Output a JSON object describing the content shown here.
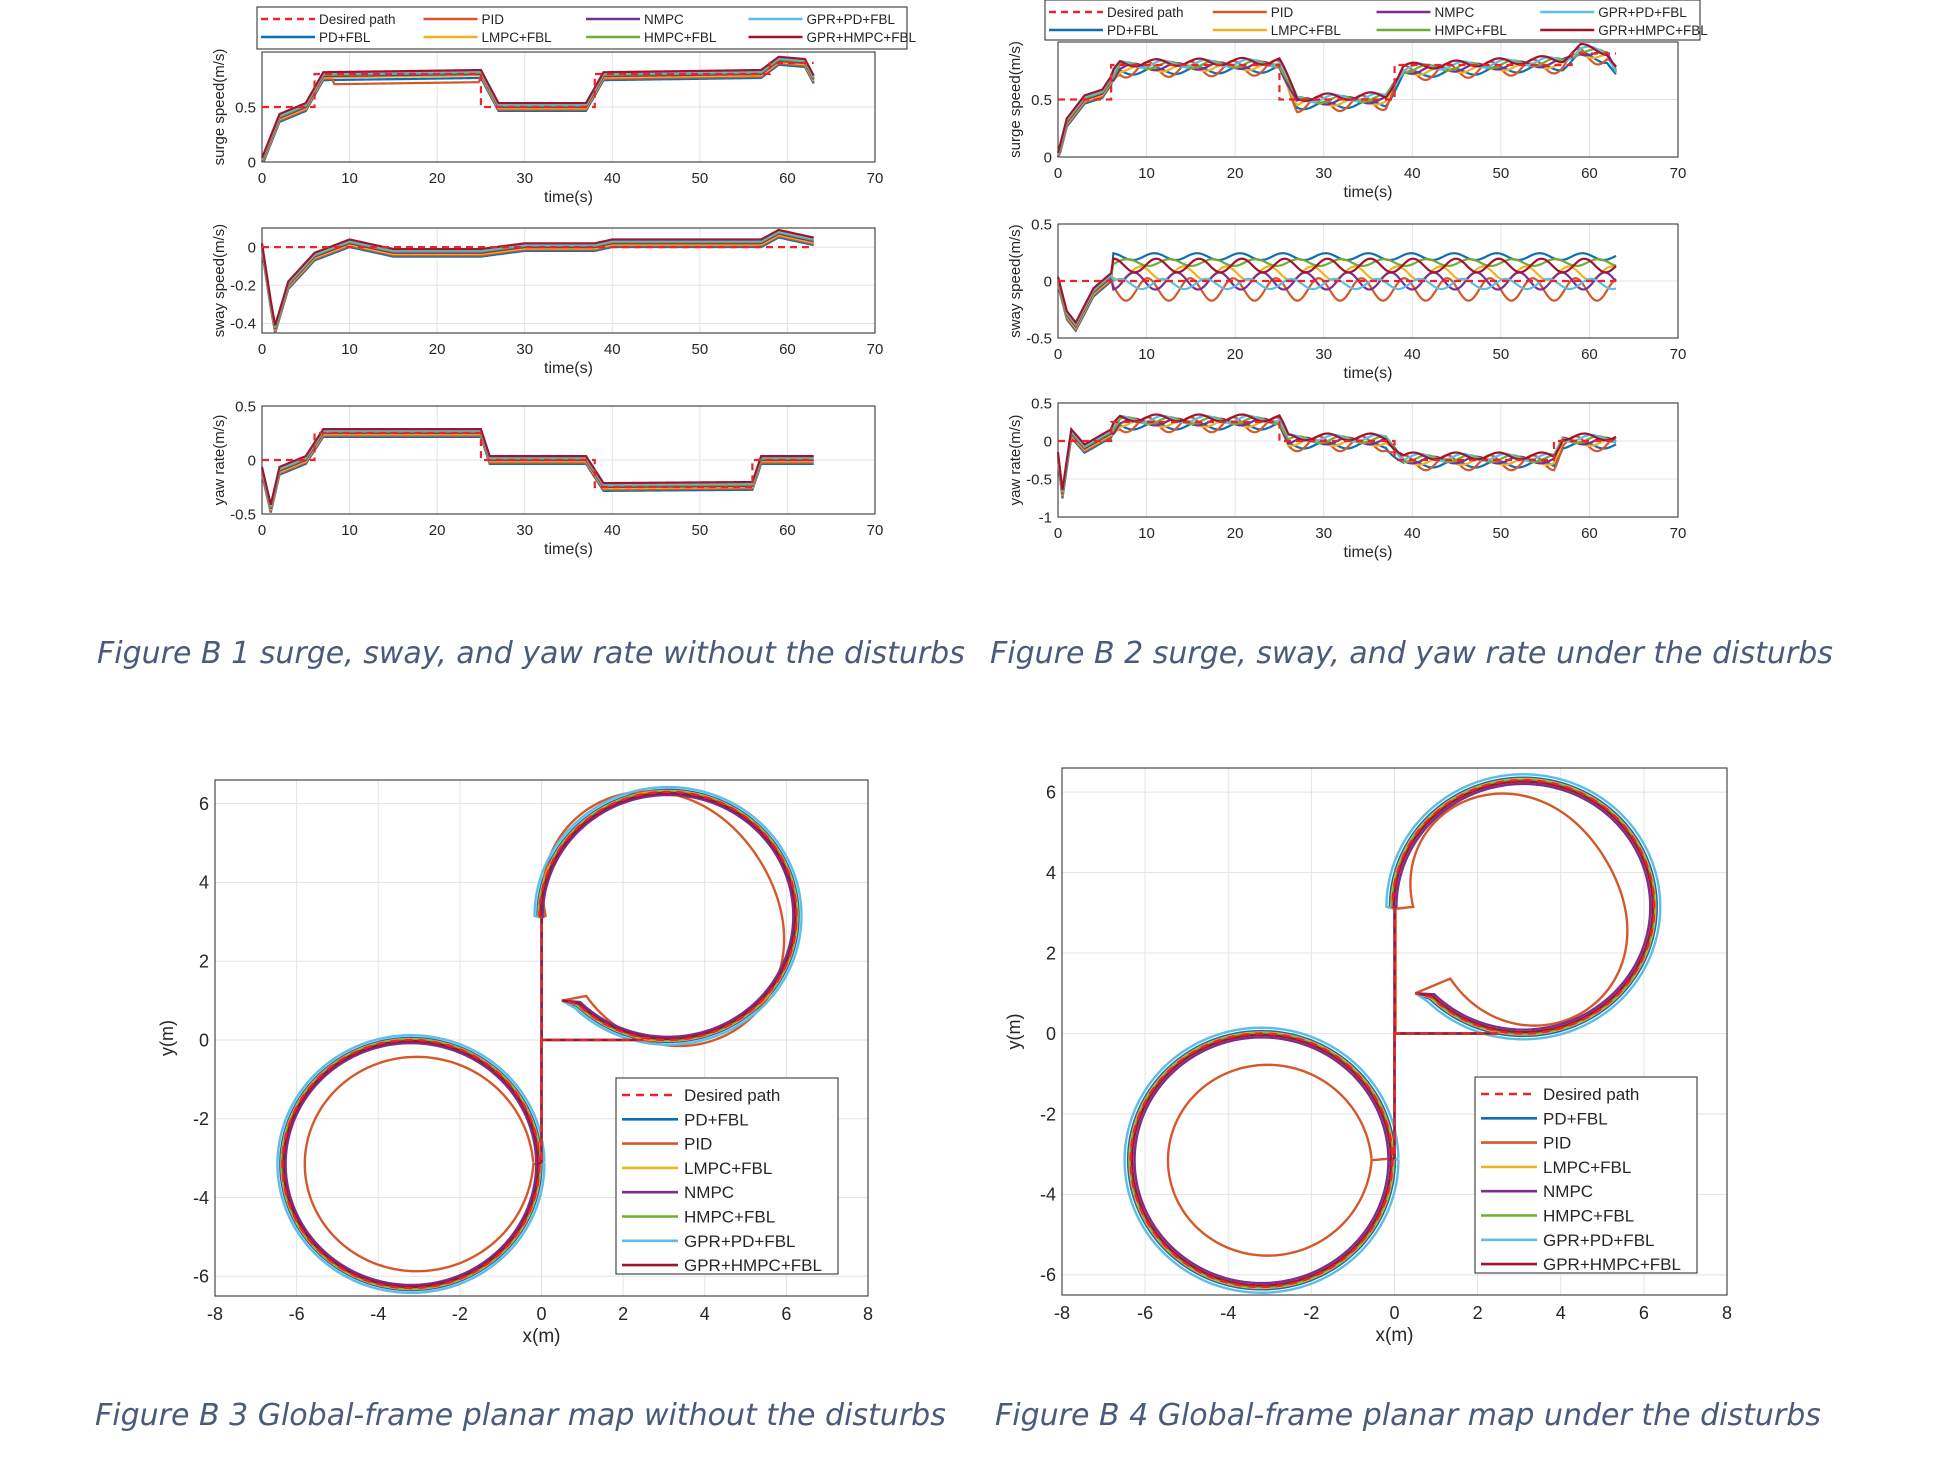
{
  "colors": {
    "Desired path": "#e8262a",
    "PD+FBL": "#0f6fb5",
    "PID": "#d4582a",
    "LMPC+FBL": "#eeb41f",
    "NMPC": "#7a2e8e",
    "HMPC+FBL": "#74aa36",
    "GPR+PD+FBL": "#5cbde6",
    "GPR+HMPC+FBL": "#a1142e"
  },
  "legend_labels": [
    "Desired path",
    "PD+FBL",
    "PID",
    "LMPC+FBL",
    "NMPC",
    "HMPC+FBL",
    "GPR+PD+FBL",
    "GPR+HMPC+FBL"
  ],
  "captions": {
    "fig1": "Figure B 1 surge, sway, and yaw rate without the disturbs",
    "fig2": "Figure B 2 surge, sway, and yaw rate under the disturbs",
    "fig3": "Figure B 3 Global-frame planar map without the disturbs",
    "fig4": "Figure B 4 Global-frame planar map under the disturbs"
  },
  "chart_data": [
    {
      "id": "fig1-surge",
      "type": "line",
      "xlabel": "time(s)",
      "ylabel": "surge speed(m/s)",
      "xlim": [
        0,
        70
      ],
      "ylim": [
        0,
        1.0
      ],
      "xticks": [
        0,
        10,
        20,
        30,
        40,
        50,
        60,
        70
      ],
      "yticks": [
        0,
        0.5
      ],
      "grid": true,
      "legend": "top-outside-2-rows",
      "desired": [
        [
          0,
          0.5
        ],
        [
          6,
          0.5
        ],
        [
          6,
          0.8
        ],
        [
          25,
          0.8
        ],
        [
          25,
          0.5
        ],
        [
          38,
          0.5
        ],
        [
          38,
          0.8
        ],
        [
          58,
          0.8
        ],
        [
          58,
          0.9
        ],
        [
          63,
          0.9
        ]
      ],
      "series_shape": [
        [
          0,
          0
        ],
        [
          1,
          0.2
        ],
        [
          2,
          0.4
        ],
        [
          5,
          0.5
        ],
        [
          7,
          0.78
        ],
        [
          25,
          0.8
        ],
        [
          27,
          0.5
        ],
        [
          37,
          0.5
        ],
        [
          39,
          0.78
        ],
        [
          57,
          0.8
        ],
        [
          59,
          0.92
        ],
        [
          62,
          0.9
        ],
        [
          63,
          0.75
        ]
      ]
    },
    {
      "id": "fig1-sway",
      "type": "line",
      "xlabel": "time(s)",
      "ylabel": "sway speed(m/s)",
      "xlim": [
        0,
        70
      ],
      "ylim": [
        -0.45,
        0.1
      ],
      "xticks": [
        0,
        10,
        20,
        30,
        40,
        50,
        60,
        70
      ],
      "yticks": [
        -0.4,
        -0.2,
        0
      ],
      "grid": true,
      "desired": [
        [
          0,
          0
        ],
        [
          63,
          0
        ]
      ],
      "series_shape": [
        [
          0,
          0
        ],
        [
          1,
          -0.3
        ],
        [
          1.5,
          -0.43
        ],
        [
          3,
          -0.2
        ],
        [
          6,
          -0.05
        ],
        [
          10,
          0.02
        ],
        [
          15,
          -0.03
        ],
        [
          25,
          -0.03
        ],
        [
          30,
          0
        ],
        [
          38,
          0
        ],
        [
          40,
          0.02
        ],
        [
          57,
          0.02
        ],
        [
          59,
          0.07
        ],
        [
          63,
          0.03
        ]
      ]
    },
    {
      "id": "fig1-yaw",
      "type": "line",
      "xlabel": "time(s)",
      "ylabel": "yaw rate(m/s)",
      "xlim": [
        0,
        70
      ],
      "ylim": [
        -0.5,
        0.5
      ],
      "xticks": [
        0,
        10,
        20,
        30,
        40,
        50,
        60,
        70
      ],
      "yticks": [
        -0.5,
        0,
        0.5
      ],
      "grid": true,
      "desired": [
        [
          0,
          0
        ],
        [
          6,
          0
        ],
        [
          6,
          0.25
        ],
        [
          25,
          0.25
        ],
        [
          25,
          0
        ],
        [
          38,
          0
        ],
        [
          38,
          -0.25
        ],
        [
          56,
          -0.25
        ],
        [
          56,
          0
        ],
        [
          63,
          0
        ]
      ],
      "series_shape": [
        [
          0,
          -0.1
        ],
        [
          1,
          -0.45
        ],
        [
          2,
          -0.1
        ],
        [
          5,
          0
        ],
        [
          7,
          0.25
        ],
        [
          25,
          0.25
        ],
        [
          26,
          0
        ],
        [
          37,
          0
        ],
        [
          39,
          -0.25
        ],
        [
          56,
          -0.24
        ],
        [
          57,
          0
        ],
        [
          63,
          0
        ]
      ]
    },
    {
      "id": "fig2-surge",
      "type": "line",
      "xlabel": "time(s)",
      "ylabel": "surge speed(m/s)",
      "xlim": [
        0,
        70
      ],
      "ylim": [
        0,
        1.0
      ],
      "xticks": [
        0,
        10,
        20,
        30,
        40,
        50,
        60,
        70
      ],
      "yticks": [
        0,
        0.5
      ],
      "grid": true,
      "legend": "top-outside-2-rows",
      "desired": [
        [
          0,
          0.5
        ],
        [
          6,
          0.5
        ],
        [
          6,
          0.8
        ],
        [
          25,
          0.8
        ],
        [
          25,
          0.5
        ],
        [
          38,
          0.5
        ],
        [
          38,
          0.8
        ],
        [
          58,
          0.8
        ],
        [
          58,
          0.9
        ],
        [
          63,
          0.9
        ]
      ],
      "series_shape": [
        [
          0,
          0
        ],
        [
          1,
          0.3
        ],
        [
          3,
          0.5
        ],
        [
          5,
          0.55
        ],
        [
          7,
          0.78
        ],
        [
          25,
          0.8
        ],
        [
          27,
          0.48
        ],
        [
          37,
          0.5
        ],
        [
          39,
          0.75
        ],
        [
          57,
          0.82
        ],
        [
          59,
          0.92
        ],
        [
          62,
          0.88
        ],
        [
          63,
          0.75
        ]
      ]
    },
    {
      "id": "fig2-sway",
      "type": "line",
      "xlabel": "time(s)",
      "ylabel": "sway speed(m/s)",
      "xlim": [
        0,
        70
      ],
      "ylim": [
        -0.5,
        0.5
      ],
      "xticks": [
        0,
        10,
        20,
        30,
        40,
        50,
        60,
        70
      ],
      "yticks": [
        -0.5,
        0,
        0.5
      ],
      "grid": true,
      "desired": [
        [
          0,
          0
        ],
        [
          63,
          0
        ]
      ],
      "series_shape": [
        [
          0,
          0
        ],
        [
          1,
          -0.3
        ],
        [
          2,
          -0.4
        ],
        [
          4,
          -0.1
        ],
        [
          7,
          0.1
        ],
        [
          63,
          0.12
        ]
      ]
    },
    {
      "id": "fig2-yaw",
      "type": "line",
      "xlabel": "time(s)",
      "ylabel": "yaw rate(m/s)",
      "xlim": [
        0,
        70
      ],
      "ylim": [
        -1,
        0.5
      ],
      "xticks": [
        0,
        10,
        20,
        30,
        40,
        50,
        60,
        70
      ],
      "yticks": [
        -1,
        -0.5,
        0,
        0.5
      ],
      "grid": true,
      "desired": [
        [
          0,
          0
        ],
        [
          6,
          0
        ],
        [
          6,
          0.25
        ],
        [
          25,
          0.25
        ],
        [
          25,
          0
        ],
        [
          38,
          0
        ],
        [
          38,
          -0.25
        ],
        [
          56,
          -0.25
        ],
        [
          56,
          0
        ],
        [
          63,
          0
        ]
      ],
      "series_shape": [
        [
          0,
          -0.2
        ],
        [
          0.5,
          -0.7
        ],
        [
          1.5,
          0.1
        ],
        [
          3,
          -0.1
        ],
        [
          6,
          0.1
        ],
        [
          7,
          0.25
        ],
        [
          25,
          0.25
        ],
        [
          26,
          0
        ],
        [
          37,
          0
        ],
        [
          39,
          -0.25
        ],
        [
          56,
          -0.25
        ],
        [
          57,
          0
        ],
        [
          63,
          0
        ]
      ]
    },
    {
      "id": "fig3-planar",
      "type": "line",
      "xlabel": "x(m)",
      "ylabel": "y(m)",
      "xlim": [
        -8,
        8
      ],
      "ylim": [
        -6.5,
        6.6
      ],
      "xticks": [
        -8,
        -6,
        -4,
        -2,
        0,
        2,
        4,
        6,
        8
      ],
      "yticks": [
        -6,
        -4,
        -2,
        0,
        2,
        4,
        6
      ],
      "grid": true,
      "legend": "inside-lower-right",
      "path_description_values": {
        "right_loop_center": [
          3.1,
          3.15
        ],
        "left_loop_center": [
          -3.2,
          -3.15
        ],
        "radius": 3.15,
        "end_point": [
          0.5,
          1.0
        ]
      }
    },
    {
      "id": "fig4-planar",
      "type": "line",
      "xlabel": "x(m)",
      "ylabel": "y(m)",
      "xlim": [
        -8,
        8
      ],
      "ylim": [
        -6.5,
        6.6
      ],
      "xticks": [
        -8,
        -6,
        -4,
        -2,
        0,
        2,
        4,
        6,
        8
      ],
      "yticks": [
        -6,
        -4,
        -2,
        0,
        2,
        4,
        6
      ],
      "grid": true,
      "legend": "inside-lower-right",
      "path_description_values": {
        "right_loop_center": [
          3.1,
          3.15
        ],
        "left_loop_center": [
          -3.2,
          -3.15
        ],
        "radius": 3.15,
        "end_point": [
          0.5,
          1.0
        ]
      }
    }
  ]
}
